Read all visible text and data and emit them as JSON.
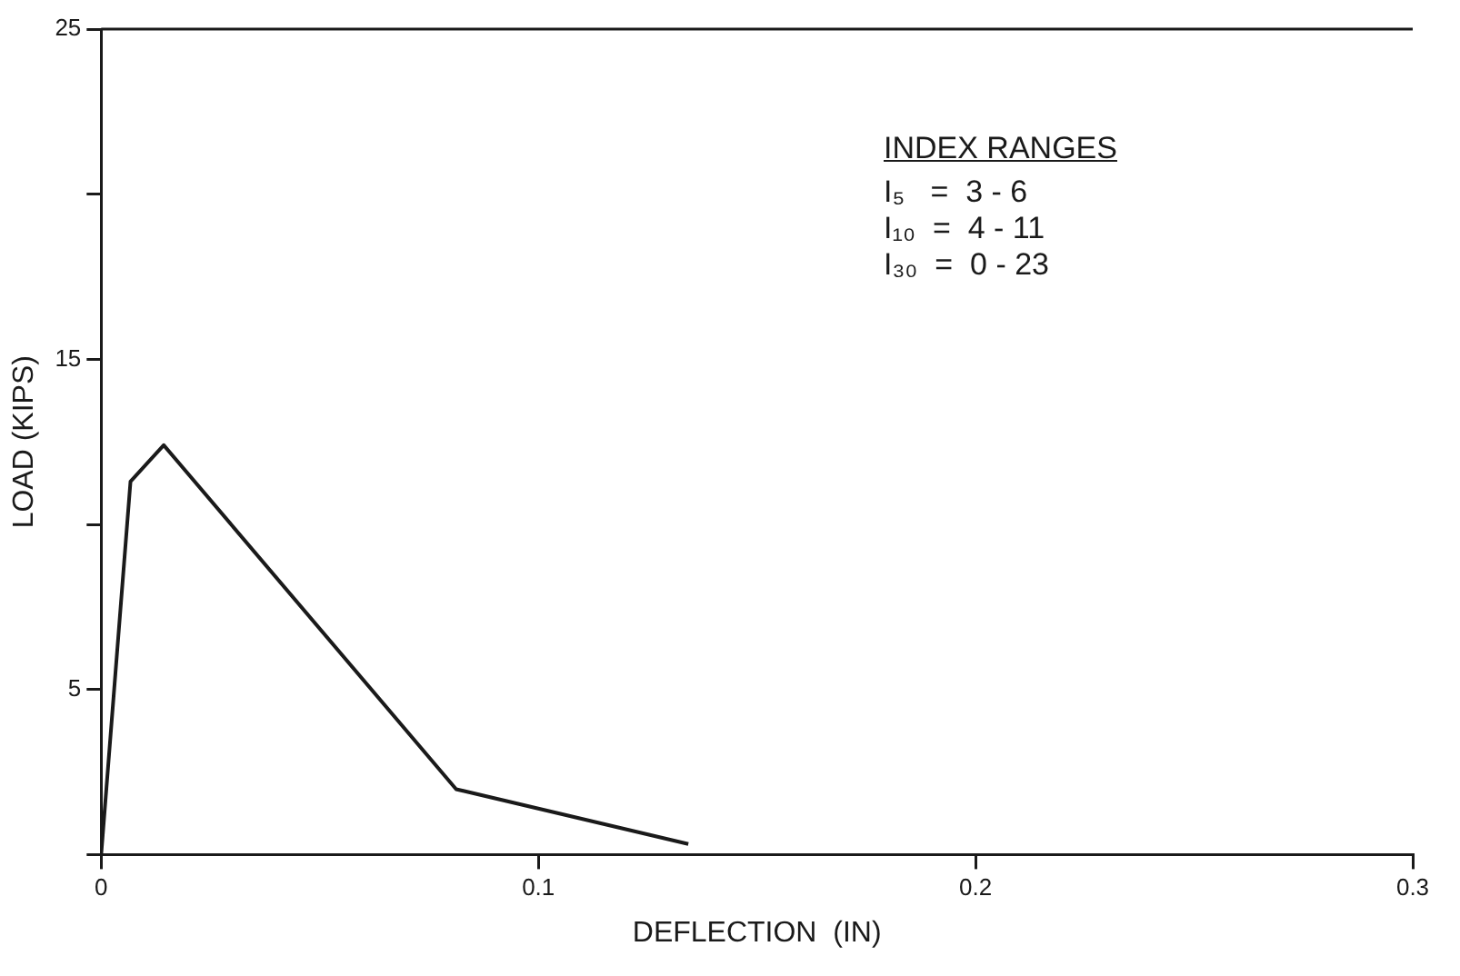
{
  "chart_data": {
    "type": "line",
    "xlabel": "DEFLECTION  (IN)",
    "ylabel": "LOAD (KIPS)",
    "annotations": [
      "INDEX RANGES",
      "I₅   =  3 - 6",
      "I₁₀  =  4 - 11",
      "I₃₀  =  0 - 23"
    ],
    "series": [
      {
        "color": "#1a1a1a",
        "x": [
          0,
          0.0067,
          0.0143,
          0.0812,
          0.1343
        ],
        "values": [
          0,
          11.3,
          12.4,
          1.98,
          0.32
        ]
      }
    ],
    "xlim": [
      0,
      0.3
    ],
    "xticks": [
      0,
      0.1,
      0.2,
      0.3
    ],
    "ylim": [
      0,
      25
    ],
    "yticks": [
      {
        "value": 0,
        "label": null
      },
      5,
      {
        "value": 10,
        "label": null
      },
      15,
      {
        "value": 20,
        "label": null
      },
      25
    ],
    "grid": false,
    "legend": false,
    "marker": "none",
    "line_style": "solid"
  }
}
